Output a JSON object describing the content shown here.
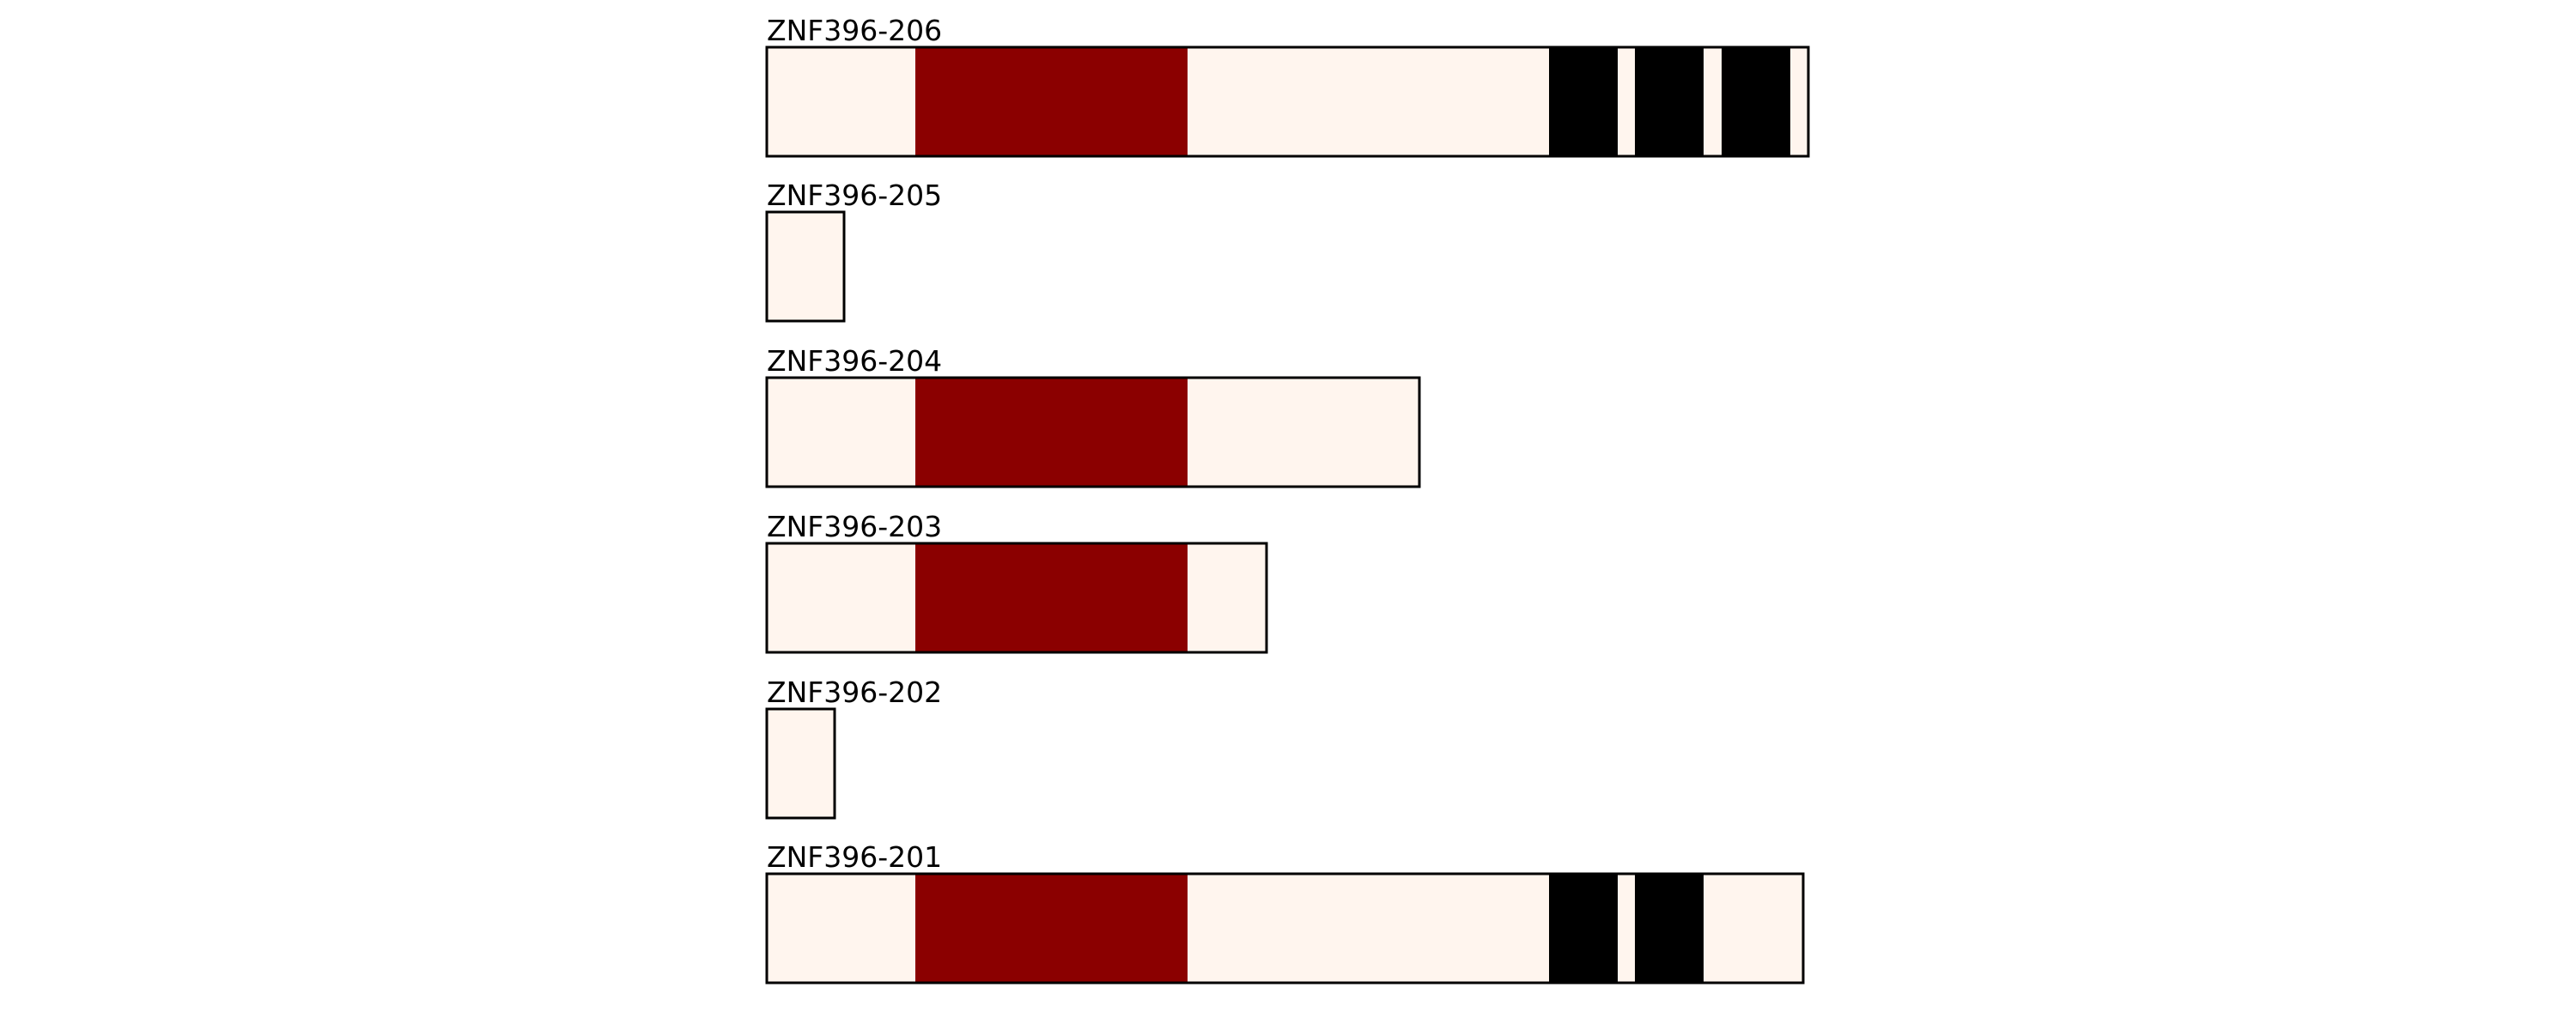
{
  "isoforms": [
    {
      "label": "ZNF396-206"
    },
    {
      "label": "ZNF396-205"
    },
    {
      "label": "ZNF396-204"
    },
    {
      "label": "ZNF396-203"
    },
    {
      "label": "ZNF396-202"
    },
    {
      "label": "ZNF396-201"
    }
  ]
}
